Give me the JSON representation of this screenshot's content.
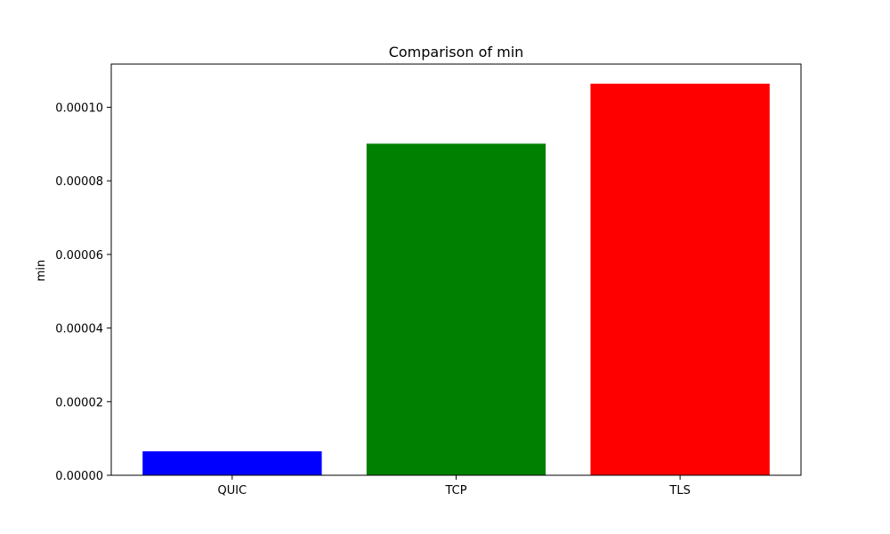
{
  "chart_data": {
    "type": "bar",
    "title": "Comparison of min",
    "xlabel": "",
    "ylabel": "min",
    "categories": [
      "QUIC",
      "TCP",
      "TLS"
    ],
    "values": [
      6.5e-06,
      9.01e-05,
      0.0001064
    ],
    "colors": [
      "#0000ff",
      "#008000",
      "#ff0000"
    ],
    "ylim": [
      0,
      0.000111725
    ],
    "yticks": [
      0,
      2e-05,
      4e-05,
      6e-05,
      8e-05,
      0.0001
    ],
    "ytick_labels": [
      "0.00000",
      "0.00002",
      "0.00004",
      "0.00006",
      "0.00008",
      "0.00010"
    ],
    "grid": false
  }
}
